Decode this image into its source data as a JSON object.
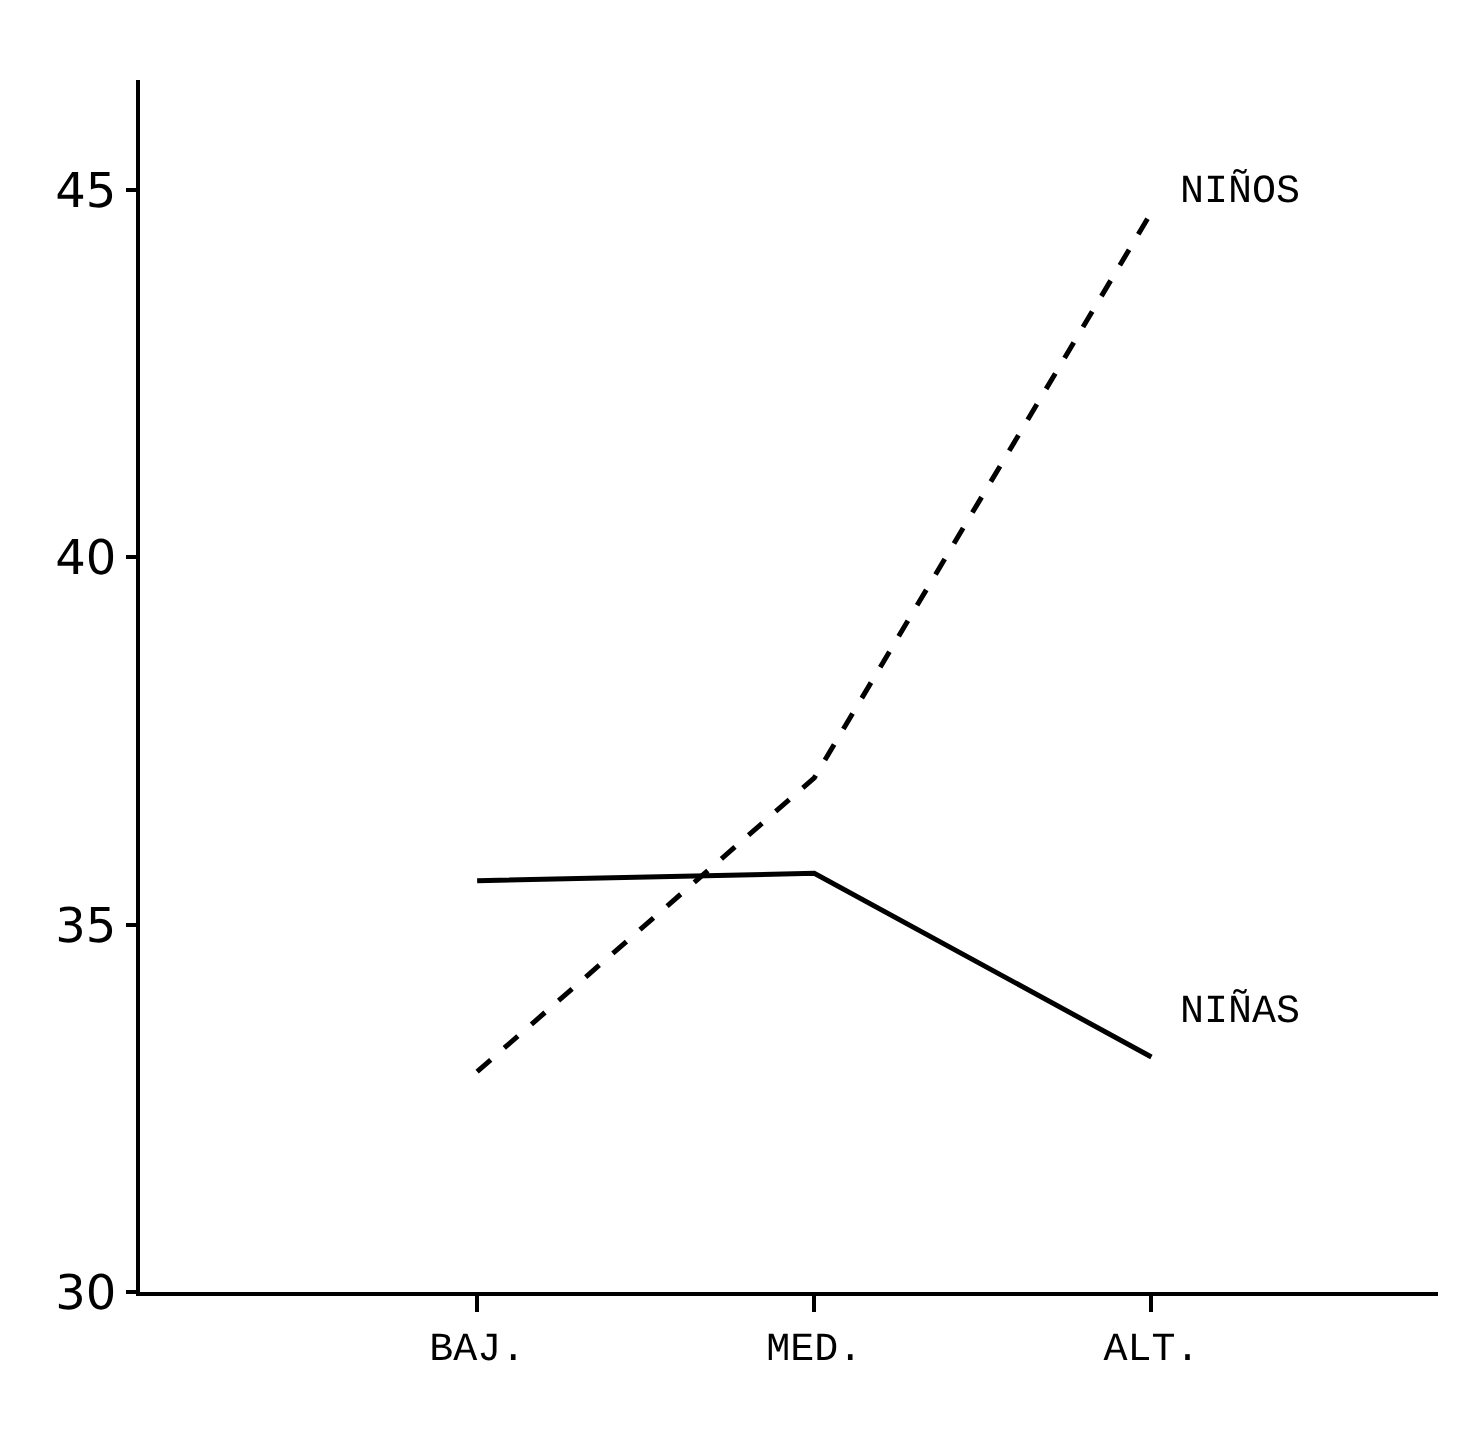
{
  "chart_data": {
    "type": "line",
    "categories": [
      "BAJ.",
      "MED.",
      "ALT."
    ],
    "series": [
      {
        "name": "NIÑOS",
        "color": "#000000",
        "line_style": "dashed",
        "values": [
          33.0,
          37.0,
          44.7
        ]
      },
      {
        "name": "NIÑAS",
        "color": "#000000",
        "line_style": "solid",
        "values": [
          35.6,
          35.7,
          33.2
        ]
      }
    ],
    "ylim": [
      30,
      46.5
    ],
    "yticks": [
      30,
      35,
      40,
      45
    ],
    "legend": false,
    "marker": "none"
  }
}
